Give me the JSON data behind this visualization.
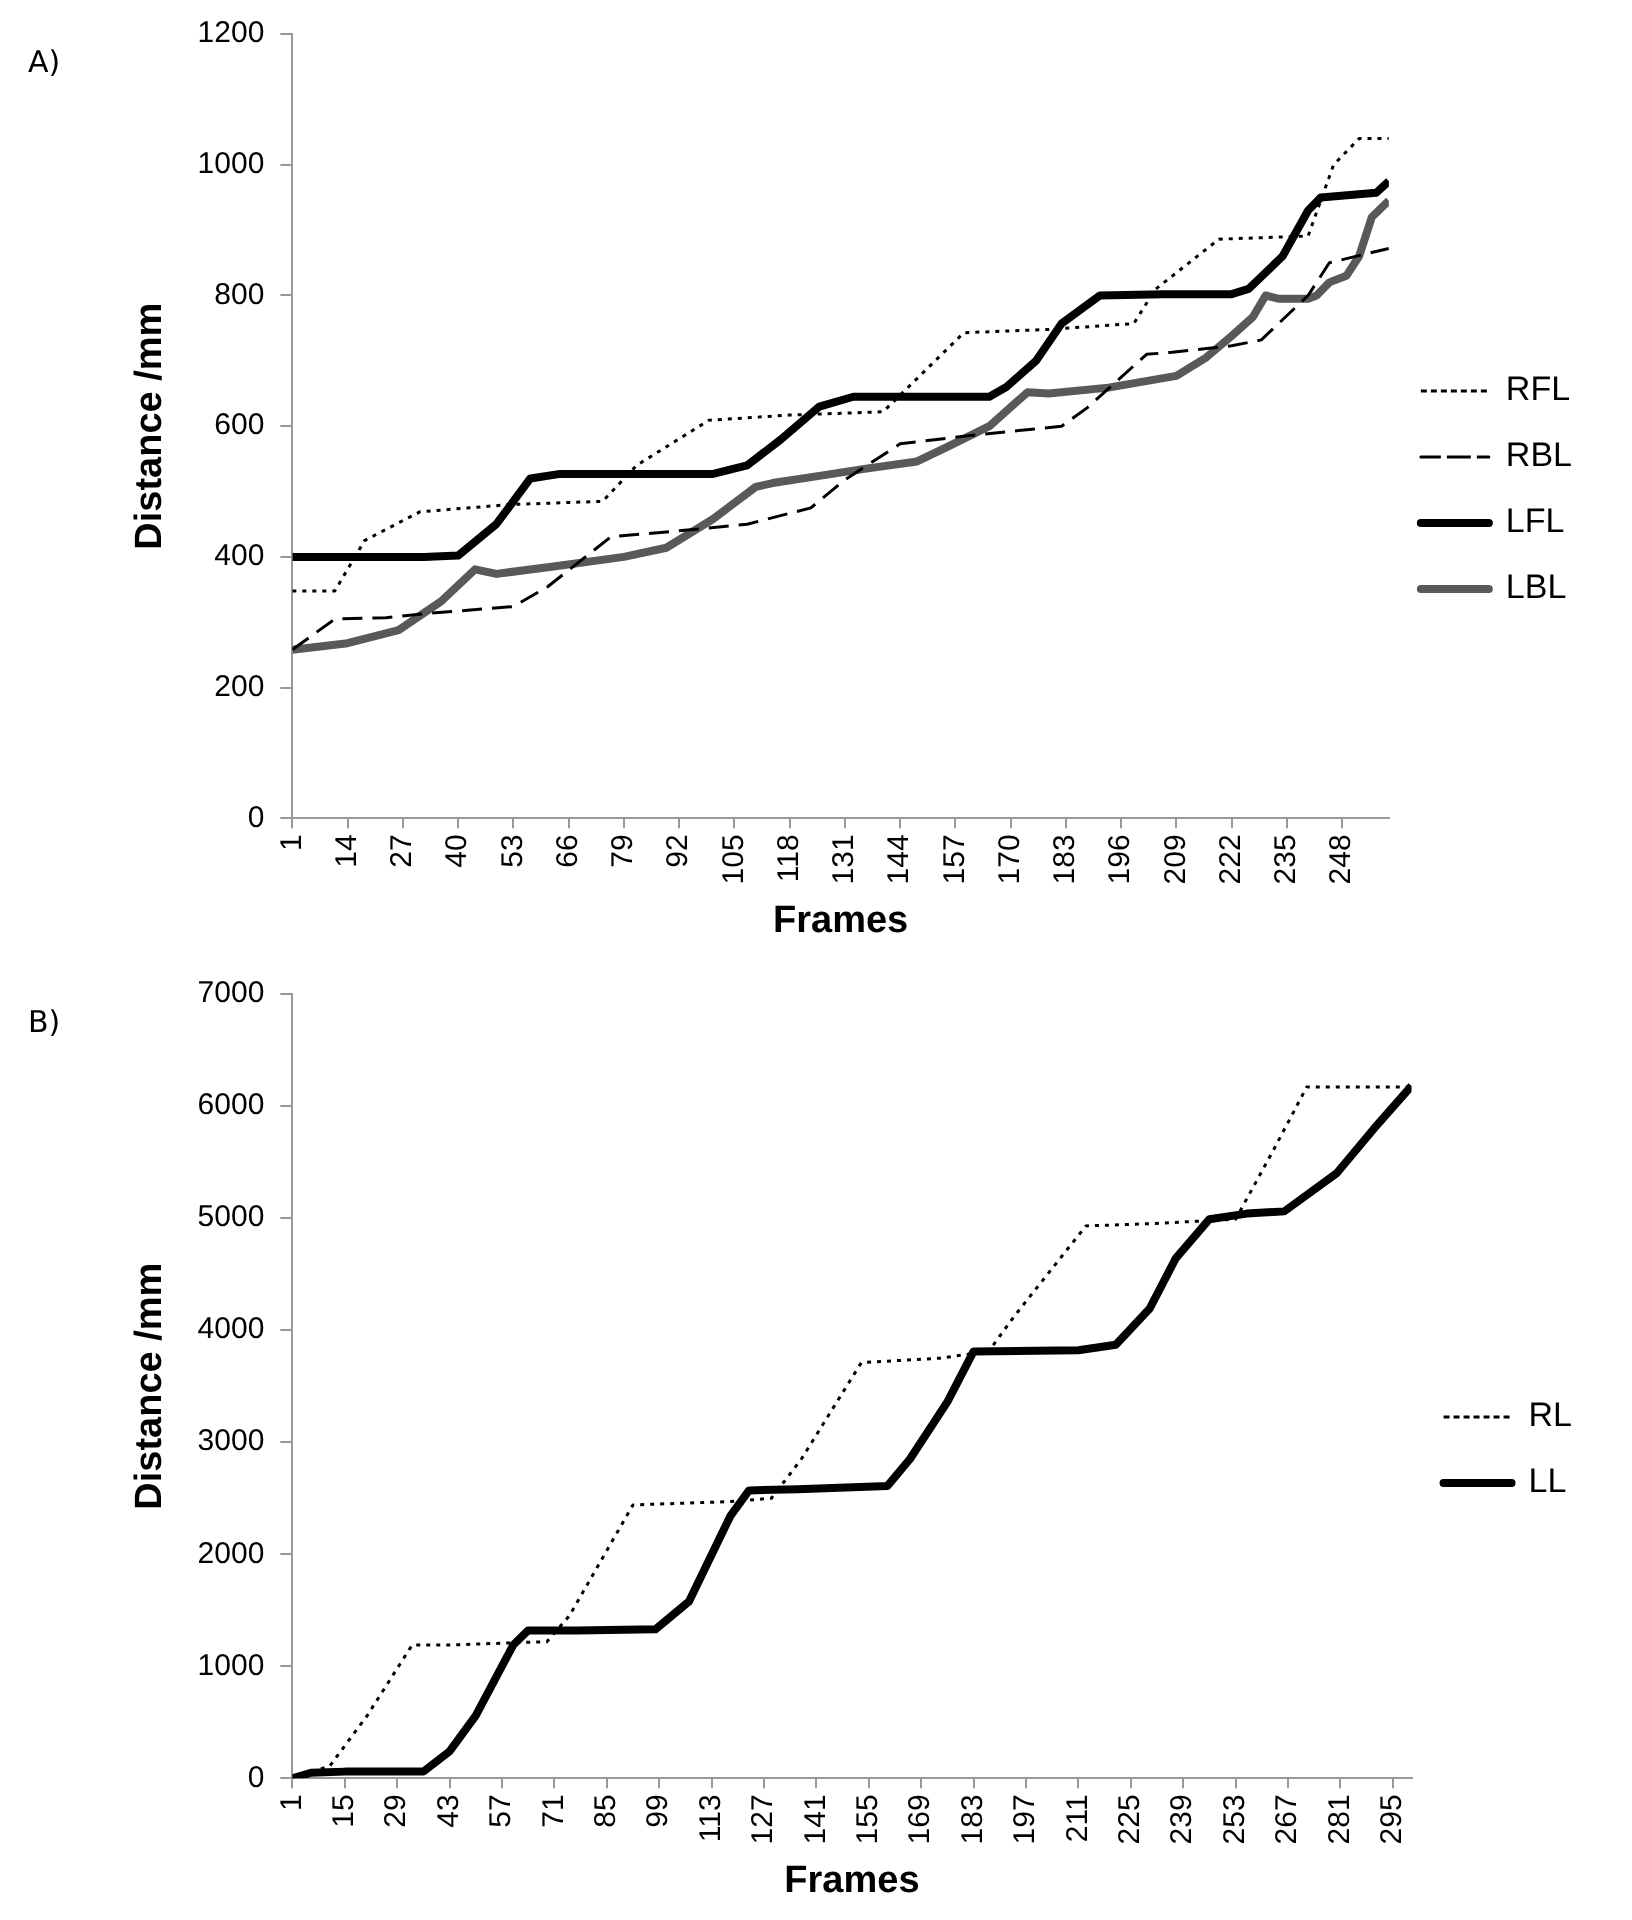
{
  "chart_data": [
    {
      "type": "line",
      "annotations": [
        "A)"
      ],
      "xlabel": "Frames",
      "ylabel": "Distance /mm",
      "xlim": [
        1,
        259
      ],
      "xticks": [
        1,
        14,
        27,
        40,
        53,
        66,
        79,
        92,
        105,
        118,
        131,
        144,
        157,
        170,
        183,
        196,
        209,
        222,
        235,
        248
      ],
      "ylim": [
        0,
        1200
      ],
      "yticks": [
        0,
        200,
        400,
        600,
        800,
        1000,
        1200
      ],
      "grid": false,
      "legend": "right",
      "marker": "none",
      "series": [
        {
          "name": "RFL",
          "color": "#000000",
          "line_style": "dotted",
          "x": [
            1,
            11,
            18,
            31,
            52,
            74,
            82,
            99,
            118,
            140,
            159,
            179,
            199,
            204,
            219,
            240,
            246,
            252,
            259
          ],
          "values": [
            348,
            348,
            425,
            469,
            480,
            485,
            540,
            609,
            617,
            622,
            743,
            748,
            757,
            809,
            886,
            891,
            1000,
            1040,
            1040
          ]
        },
        {
          "name": "RBL",
          "color": "#000000",
          "line_style": "dashed",
          "x": [
            1,
            11,
            23,
            32,
            53,
            61,
            76,
            89,
            108,
            123,
            131,
            144,
            161,
            182,
            188,
            202,
            208,
            222,
            229,
            240,
            245,
            259
          ],
          "values": [
            258,
            305,
            307,
            313,
            324,
            354,
            431,
            438,
            450,
            475,
            518,
            573,
            586,
            600,
            628,
            710,
            713,
            723,
            732,
            800,
            850,
            872
          ]
        },
        {
          "name": "LFL",
          "color": "#000000",
          "line_style": "solid",
          "x": [
            1,
            17,
            32,
            40,
            49,
            57,
            64,
            100,
            108,
            116,
            125,
            133,
            144,
            165,
            169,
            176,
            182,
            191,
            206,
            222,
            226,
            234,
            240,
            243,
            256,
            259
          ],
          "values": [
            400,
            400,
            400,
            402,
            450,
            520,
            527,
            527,
            540,
            580,
            630,
            645,
            645,
            645,
            660,
            700,
            757,
            800,
            802,
            802,
            810,
            860,
            930,
            950,
            957,
            975
          ]
        },
        {
          "name": "LBL",
          "color": "#595959",
          "line_style": "solid",
          "x": [
            1,
            14,
            26,
            36,
            44,
            49,
            62,
            79,
            89,
            100,
            110,
            114,
            125,
            136,
            148,
            155,
            165,
            174,
            179,
            193,
            209,
            216,
            222,
            227,
            230,
            233,
            240,
            242,
            245,
            249,
            252,
            255,
            259
          ],
          "values": [
            258,
            268,
            288,
            332,
            381,
            374,
            385,
            400,
            414,
            458,
            507,
            513,
            524,
            535,
            546,
            568,
            600,
            652,
            650,
            659,
            677,
            705,
            738,
            767,
            800,
            795,
            795,
            800,
            820,
            830,
            860,
            920,
            945
          ]
        }
      ]
    },
    {
      "type": "line",
      "annotations": [
        "B)"
      ],
      "xlabel": "Frames",
      "ylabel": "Distance /mm",
      "xlim": [
        1,
        300
      ],
      "xticks": [
        1,
        15,
        29,
        43,
        57,
        71,
        85,
        99,
        113,
        127,
        141,
        155,
        169,
        183,
        197,
        211,
        225,
        239,
        253,
        267,
        281,
        295
      ],
      "ylim": [
        0,
        7000
      ],
      "yticks": [
        0,
        1000,
        2000,
        3000,
        4000,
        5000,
        6000,
        7000
      ],
      "grid": false,
      "legend": "right",
      "marker": "none",
      "series": [
        {
          "name": "RL",
          "color": "#000000",
          "line_style": "dotted",
          "x": [
            1,
            11,
            21,
            33,
            43,
            69,
            75,
            92,
            118,
            129,
            137,
            153,
            174,
            187,
            194,
            213,
            230,
            253,
            263,
            272,
            300
          ],
          "values": [
            0,
            110,
            560,
            1190,
            1190,
            1220,
            1450,
            2440,
            2470,
            2500,
            2850,
            3710,
            3750,
            3810,
            4130,
            4930,
            4950,
            4990,
            5600,
            6170,
            6170
          ]
        },
        {
          "name": "LL",
          "color": "#000000",
          "line_style": "solid",
          "x": [
            1,
            6,
            15,
            36,
            43,
            50,
            60,
            64,
            77,
            98,
            107,
            118,
            123,
            136,
            160,
            166,
            176,
            183,
            211,
            221,
            230,
            237,
            246,
            256,
            266,
            280,
            290,
            300
          ],
          "values": [
            0,
            50,
            60,
            60,
            240,
            560,
            1190,
            1320,
            1320,
            1330,
            1580,
            2340,
            2570,
            2580,
            2610,
            2850,
            3360,
            3810,
            3820,
            3870,
            4190,
            4640,
            4990,
            5040,
            5060,
            5400,
            5800,
            6180
          ]
        }
      ]
    }
  ]
}
